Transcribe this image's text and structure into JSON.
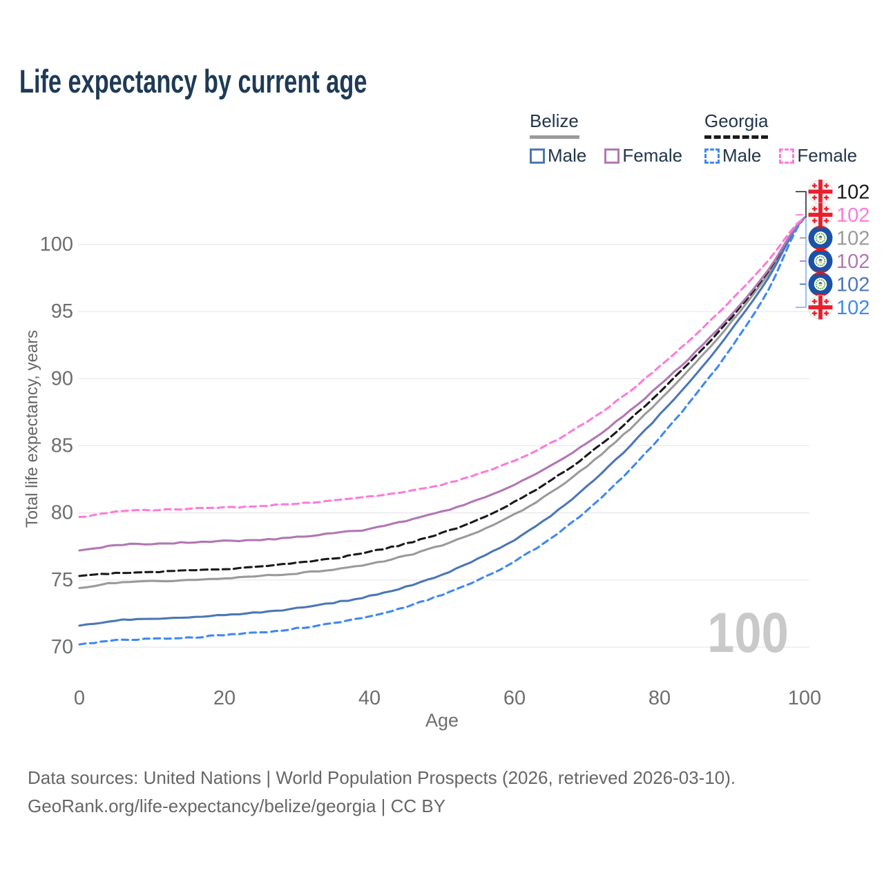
{
  "title": "Life expectancy by current age",
  "watermark": "100",
  "legend": {
    "groups": [
      {
        "label": "Belize",
        "line_style": "solid",
        "line_color": "#9a9a9a"
      },
      {
        "label": "Georgia",
        "line_style": "dashed",
        "line_color": "#1a1a1a"
      }
    ],
    "items": [
      {
        "label": "Male",
        "color": "#4b77b5",
        "dashed": false
      },
      {
        "label": "Female",
        "color": "#b177b3",
        "dashed": false
      },
      {
        "label": "Male",
        "color": "#3f88f2",
        "dashed": true
      },
      {
        "label": "Female",
        "color": "#ff7ad8",
        "dashed": true
      }
    ]
  },
  "footer": {
    "line1": "Data sources: United Nations | World Population Prospects (2026, retrieved 2026-03-10).",
    "line2": "GeoRank.org/life-expectancy/belize/georgia | CC BY"
  },
  "chart_data": {
    "type": "line",
    "title": "Life expectancy by current age",
    "xlabel": "Age",
    "ylabel": "Total life expectancy, years",
    "xlim": [
      0,
      100
    ],
    "ylim": [
      68,
      104
    ],
    "xticks": [
      0,
      20,
      40,
      60,
      80,
      100
    ],
    "yticks": [
      70,
      75,
      80,
      85,
      90,
      95,
      100
    ],
    "grid": "horizontal",
    "grid_color": "#e7e7e7",
    "tick_color": "#6e6e6e",
    "ages": [
      0,
      5,
      10,
      15,
      20,
      25,
      30,
      35,
      40,
      45,
      50,
      55,
      60,
      65,
      70,
      75,
      80,
      85,
      90,
      95,
      100
    ],
    "series": [
      {
        "id": "georgia-total",
        "country": "Georgia",
        "sex": "Both",
        "color": "#1a1a1a",
        "dashed": true,
        "flag": "georgia",
        "end_label": "102",
        "values": [
          75.3,
          75.5,
          75.6,
          75.7,
          75.8,
          76.0,
          76.3,
          76.6,
          77.1,
          77.7,
          78.5,
          79.5,
          80.8,
          82.4,
          84.3,
          86.5,
          89.0,
          91.7,
          94.6,
          98.0,
          102
        ]
      },
      {
        "id": "georgia-female",
        "country": "Georgia",
        "sex": "Female",
        "color": "#ff7ad8",
        "dashed": true,
        "flag": "georgia",
        "end_label": "102",
        "values": [
          79.7,
          80.1,
          80.2,
          80.3,
          80.4,
          80.5,
          80.7,
          80.9,
          81.2,
          81.6,
          82.1,
          82.9,
          83.9,
          85.2,
          86.8,
          88.7,
          90.9,
          93.3,
          95.9,
          98.8,
          102
        ]
      },
      {
        "id": "belize-total",
        "country": "Belize",
        "sex": "Both",
        "color": "#9a9a9a",
        "dashed": false,
        "flag": "belize",
        "end_label": "102",
        "values": [
          74.4,
          74.8,
          74.9,
          75.0,
          75.1,
          75.3,
          75.5,
          75.8,
          76.2,
          76.8,
          77.6,
          78.6,
          79.9,
          81.5,
          83.5,
          85.8,
          88.4,
          91.2,
          94.3,
          97.8,
          102
        ]
      },
      {
        "id": "belize-female",
        "country": "Belize",
        "sex": "Female",
        "color": "#b177b3",
        "dashed": false,
        "flag": "belize",
        "end_label": "102",
        "values": [
          77.2,
          77.6,
          77.7,
          77.8,
          77.9,
          78.0,
          78.2,
          78.5,
          78.8,
          79.4,
          80.1,
          81.0,
          82.1,
          83.5,
          85.2,
          87.2,
          89.5,
          92.0,
          94.8,
          98.1,
          102
        ]
      },
      {
        "id": "belize-male",
        "country": "Belize",
        "sex": "Male",
        "color": "#4b77b5",
        "dashed": false,
        "flag": "belize",
        "end_label": "102",
        "values": [
          71.6,
          72.0,
          72.1,
          72.2,
          72.4,
          72.6,
          72.9,
          73.3,
          73.8,
          74.5,
          75.4,
          76.6,
          78.0,
          79.8,
          82.0,
          84.5,
          87.3,
          90.3,
          93.7,
          97.5,
          102
        ]
      },
      {
        "id": "georgia-male",
        "country": "Georgia",
        "sex": "Male",
        "color": "#3f88f2",
        "dashed": true,
        "flag": "georgia",
        "end_label": "102",
        "values": [
          70.2,
          70.5,
          70.6,
          70.7,
          70.9,
          71.1,
          71.4,
          71.8,
          72.3,
          73.0,
          73.9,
          75.0,
          76.4,
          78.1,
          80.2,
          82.7,
          85.6,
          88.8,
          92.4,
          96.6,
          102
        ]
      }
    ],
    "legend_position": "top-right"
  }
}
